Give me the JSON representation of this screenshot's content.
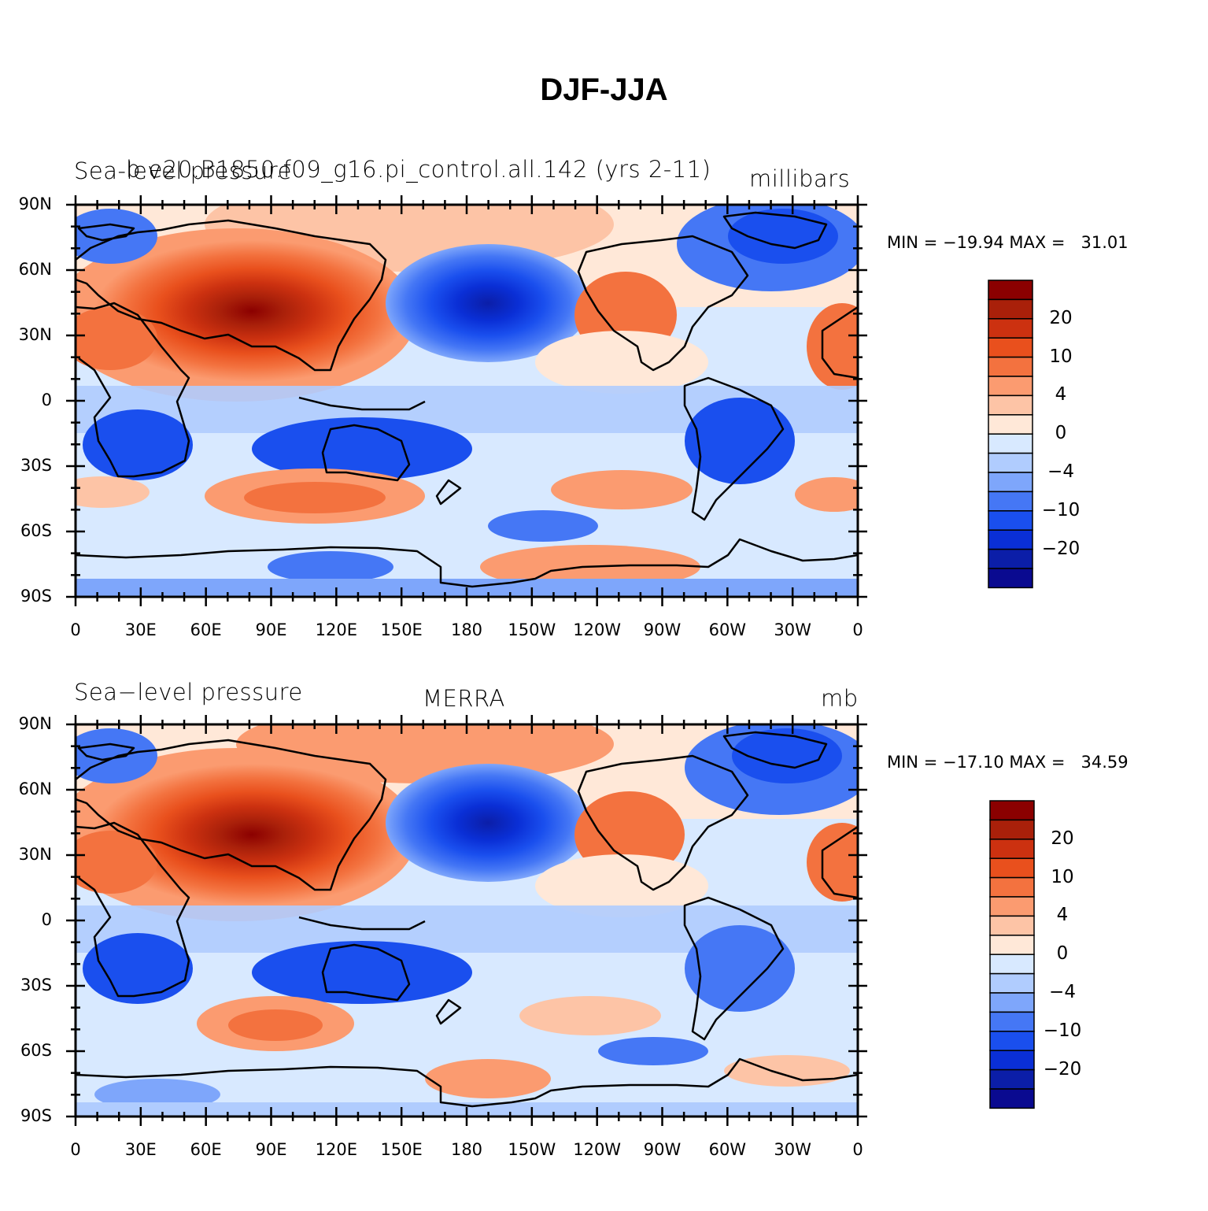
{
  "title": "DJF-JJA",
  "colors": {
    "levels": [
      "#0a0a90",
      "#0b1ea8",
      "#0a2fd6",
      "#1a4fee",
      "#4577f5",
      "#7ea6fb",
      "#b0ccfe",
      "#d8e9ff",
      "#ffe8d8",
      "#fdc4a6",
      "#fb9b70",
      "#f3723f",
      "#e9501d",
      "#cc3110",
      "#a9200a",
      "#8b0000"
    ],
    "coastline": "#000000"
  },
  "panels": [
    {
      "id": "model",
      "left_label": "Sea-level pressure",
      "center_label": "b.e20.B1850.f09_g16.pi_control.all.142 (yrs 2-11)",
      "right_label": "millibars",
      "stats": "MIN = −19.94 MAX =   31.01",
      "colorbar_labels": [
        "20",
        "10",
        "4",
        "0",
        "−4",
        "−10",
        "−20"
      ]
    },
    {
      "id": "obs",
      "left_label": "Sea−level pressure",
      "center_label": "MERRA",
      "right_label": "mb",
      "stats": "MIN = −17.10 MAX =   34.59",
      "colorbar_labels": [
        "20",
        "10",
        "4",
        "0",
        "−4",
        "−10",
        "−20"
      ]
    }
  ],
  "x_ticks": [
    "0",
    "30E",
    "60E",
    "90E",
    "120E",
    "150E",
    "180",
    "150W",
    "120W",
    "90W",
    "60W",
    "30W",
    "0"
  ],
  "y_ticks": [
    "90N",
    "60N",
    "30N",
    "0",
    "30S",
    "60S",
    "90S"
  ],
  "chart_data": {
    "type": "heatmap",
    "variable": "Sea-level pressure",
    "season_difference": "DJF-JJA",
    "levels": [
      -20,
      -15,
      -10,
      -6,
      -4,
      -2,
      0,
      2,
      4,
      6,
      10,
      15,
      20,
      25
    ],
    "colorbar_tick_labels": [
      20,
      10,
      4,
      0,
      -4,
      -10,
      -20
    ],
    "x_range": [
      0,
      360
    ],
    "y_range": [
      -90,
      90
    ],
    "panels": [
      {
        "name": "b.e20.B1850.f09_g16.pi_control.all.142 (yrs 2-11)",
        "min": -19.94,
        "max": 31.01,
        "units": "millibars"
      },
      {
        "name": "MERRA",
        "min": -17.1,
        "max": 34.59,
        "units": "mb"
      }
    ]
  }
}
